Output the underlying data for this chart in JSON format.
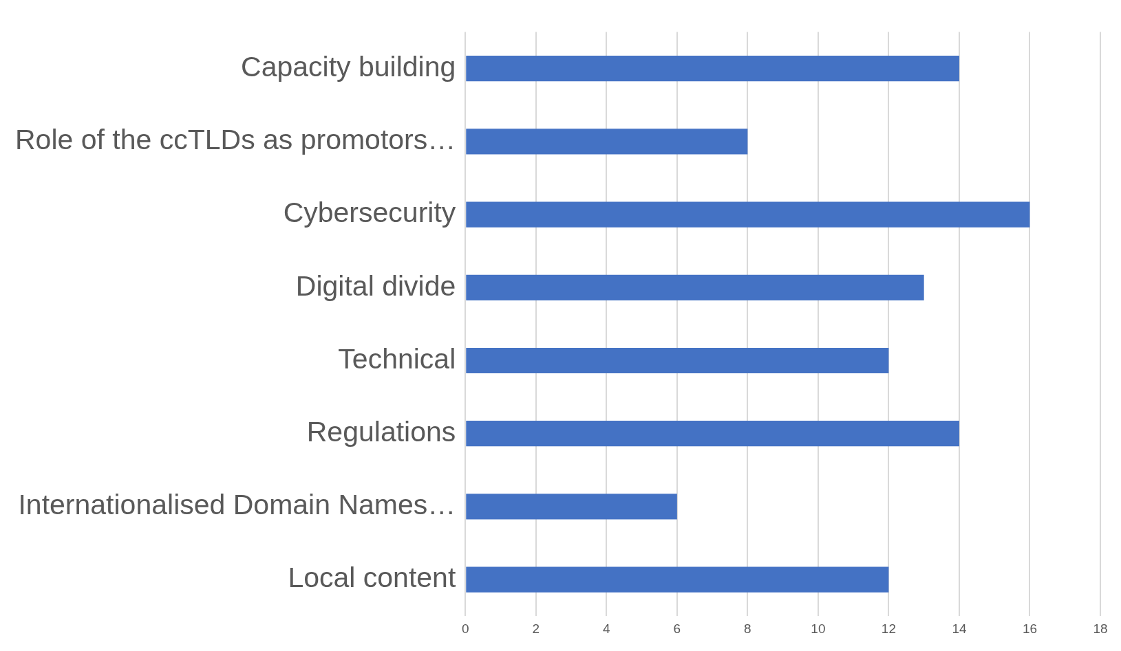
{
  "chart_data": {
    "type": "bar",
    "orientation": "horizontal",
    "categories": [
      "Capacity building",
      "Role of the ccTLDs as promotors…",
      "Cybersecurity",
      "Digital divide",
      "Technical",
      "Regulations",
      "Internationalised Domain Names…",
      "Local content"
    ],
    "values": [
      14,
      8,
      16,
      13,
      12,
      14,
      6,
      12
    ],
    "color": "#4472c4",
    "xlim": [
      0,
      18
    ],
    "xticks": [
      0,
      2,
      4,
      6,
      8,
      10,
      12,
      14,
      16,
      18
    ],
    "grid": "x",
    "legend": false
  }
}
